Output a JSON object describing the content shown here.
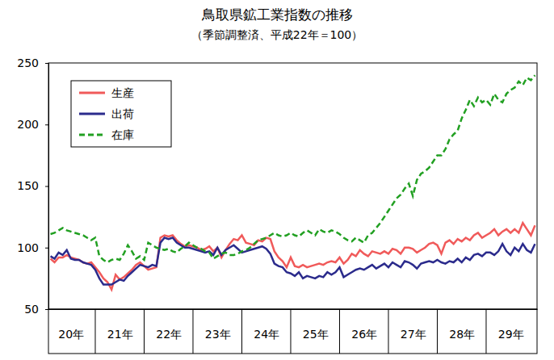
{
  "chart_data": {
    "type": "line",
    "title": "鳥取県鉱工業指数の推移",
    "subtitle": "（季節調整済、平成22年＝100）",
    "categories": [
      null,
      null,
      null,
      null,
      null,
      "20年",
      null,
      null,
      null,
      null,
      null,
      null,
      null,
      null,
      null,
      null,
      null,
      "21年",
      null,
      null,
      null,
      null,
      null,
      null,
      null,
      null,
      null,
      null,
      null,
      "22年",
      null,
      null,
      null,
      null,
      null,
      null,
      null,
      null,
      null,
      null,
      null,
      "23年",
      null,
      null,
      null,
      null,
      null,
      null,
      null,
      null,
      null,
      null,
      null,
      "24年",
      null,
      null,
      null,
      null,
      null,
      null,
      null,
      null,
      null,
      null,
      null,
      "25年",
      null,
      null,
      null,
      null,
      null,
      null,
      null,
      null,
      null,
      null,
      null,
      "26年",
      null,
      null,
      null,
      null,
      null,
      null,
      null,
      null,
      null,
      null,
      null,
      "27年",
      null,
      null,
      null,
      null,
      null,
      null,
      null,
      null,
      null,
      null,
      null,
      "28年",
      null,
      null,
      null,
      null,
      null,
      null,
      null,
      null,
      null,
      null,
      null,
      "29年",
      null,
      null,
      null,
      null,
      null,
      null
    ],
    "series": [
      {
        "name": "生産",
        "color": "#f05a5a",
        "line_style": "solid",
        "values": [
          91,
          88,
          92,
          92,
          94,
          92,
          91,
          90,
          88,
          87,
          88,
          84,
          80,
          75,
          72,
          66,
          78,
          74,
          76,
          79,
          82,
          86,
          88,
          85,
          82,
          83,
          84,
          108,
          110,
          109,
          110,
          106,
          103,
          101,
          102,
          101,
          100,
          98,
          99,
          101,
          97,
          100,
          92,
          98,
          103,
          107,
          106,
          110,
          104,
          103,
          102,
          106,
          105,
          108,
          107,
          97,
          92,
          89,
          84,
          92,
          85,
          84,
          86,
          84,
          85,
          86,
          87,
          86,
          88,
          89,
          88,
          92,
          87,
          90,
          95,
          93,
          98,
          95,
          93,
          97,
          96,
          95,
          97,
          95,
          99,
          98,
          95,
          100,
          100,
          99,
          96,
          98,
          100,
          103,
          104,
          102,
          95,
          104,
          106,
          103,
          107,
          105,
          108,
          106,
          110,
          112,
          108,
          110,
          112,
          115,
          110,
          113,
          115,
          112,
          115,
          112,
          120,
          115,
          110,
          118
        ]
      },
      {
        "name": "出荷",
        "color": "#2b2b8c",
        "line_style": "solid",
        "values": [
          93,
          91,
          96,
          94,
          98,
          91,
          90,
          90,
          88,
          87,
          86,
          82,
          75,
          70,
          70,
          70,
          72,
          74,
          73,
          77,
          80,
          83,
          86,
          85,
          84,
          86,
          85,
          104,
          108,
          107,
          108,
          104,
          102,
          100,
          100,
          99,
          98,
          97,
          96,
          97,
          94,
          100,
          94,
          98,
          100,
          102,
          99,
          96,
          97,
          98,
          99,
          100,
          101,
          99,
          95,
          87,
          85,
          84,
          80,
          79,
          77,
          80,
          75,
          77,
          76,
          75,
          77,
          76,
          80,
          78,
          80,
          84,
          76,
          78,
          80,
          82,
          83,
          82,
          84,
          86,
          83,
          85,
          87,
          84,
          88,
          86,
          84,
          89,
          88,
          86,
          83,
          87,
          88,
          89,
          88,
          90,
          88,
          87,
          89,
          88,
          91,
          88,
          92,
          90,
          94,
          95,
          93,
          96,
          96,
          94,
          97,
          103,
          97,
          94,
          100,
          97,
          103,
          98,
          96,
          103
        ]
      },
      {
        "name": "在庫",
        "color": "#22a022",
        "line_style": "dashed",
        "values": [
          111,
          112,
          114,
          116,
          114,
          113,
          112,
          111,
          110,
          108,
          106,
          108,
          93,
          90,
          88,
          90,
          91,
          90,
          95,
          102,
          97,
          91,
          93,
          90,
          104,
          102,
          100,
          99,
          98,
          99,
          97,
          96,
          99,
          101,
          104,
          102,
          100,
          99,
          97,
          96,
          91,
          93,
          95,
          96,
          94,
          94,
          95,
          97,
          98,
          100,
          103,
          106,
          107,
          108,
          110,
          112,
          110,
          109,
          110,
          112,
          110,
          109,
          112,
          114,
          112,
          110,
          115,
          113,
          112,
          114,
          113,
          111,
          108,
          106,
          105,
          108,
          106,
          104,
          110,
          112,
          116,
          120,
          125,
          130,
          135,
          140,
          143,
          148,
          152,
          142,
          155,
          160,
          162,
          165,
          170,
          175,
          175,
          180,
          188,
          192,
          195,
          205,
          212,
          220,
          215,
          222,
          218,
          220,
          216,
          225,
          220,
          218,
          225,
          228,
          230,
          235,
          232,
          238,
          236,
          240
        ]
      }
    ],
    "ylim": [
      50,
      250
    ],
    "yticks": [
      50,
      100,
      150,
      200,
      250
    ],
    "grid": false,
    "legend": "upper left"
  }
}
